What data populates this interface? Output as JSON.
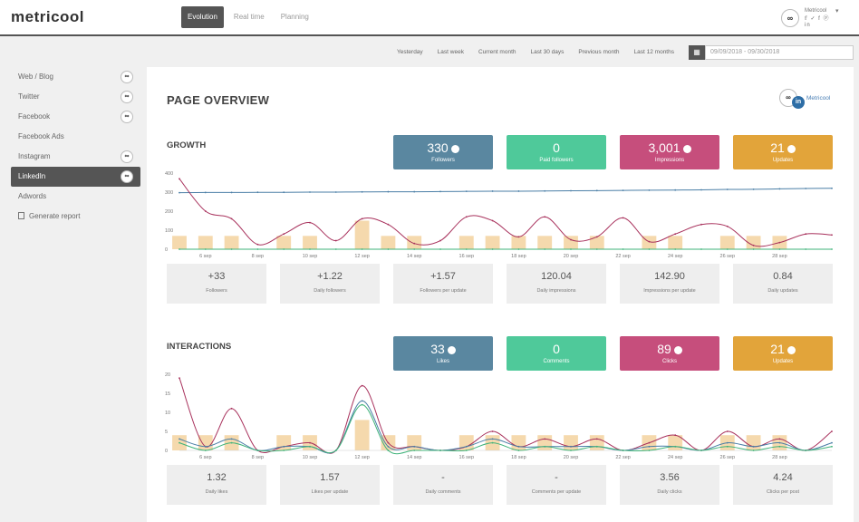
{
  "app": {
    "logo": "metricool"
  },
  "nav": {
    "tabs": [
      {
        "label": "Evolution"
      },
      {
        "label": "Real time"
      },
      {
        "label": "Planning"
      }
    ]
  },
  "account": {
    "name": "Metricool",
    "avatar": "∞",
    "social_icons": "𝕗 ✓ f ⓟ in"
  },
  "range": {
    "items": [
      {
        "label": "Yesterday"
      },
      {
        "label": "Last week"
      },
      {
        "label": "Current month"
      },
      {
        "label": "Last 30 days"
      },
      {
        "label": "Previous month"
      },
      {
        "label": "Last 12 months"
      }
    ],
    "date_value": "09/09/2018 - 09/30/2018"
  },
  "sidebar": {
    "items": [
      {
        "label": "Web / Blog"
      },
      {
        "label": "Twitter"
      },
      {
        "label": "Facebook"
      },
      {
        "label": "Facebook Ads"
      },
      {
        "label": "Instagram"
      },
      {
        "label": "LinkedIn"
      },
      {
        "label": "Adwords"
      },
      {
        "label": "Generate report"
      }
    ]
  },
  "page": {
    "title": "PAGE OVERVIEW",
    "brand_name": "Metricool",
    "brand_in": "in",
    "brand_mark": "∞"
  },
  "growth": {
    "title": "GROWTH",
    "kpis": [
      {
        "value": "330",
        "label": "Followers",
        "color": "#5a87a0"
      },
      {
        "value": "0",
        "label": "Paid followers",
        "color": "#4fc99a"
      },
      {
        "value": "3,001",
        "label": "Impressions",
        "color": "#c64e7c"
      },
      {
        "value": "21",
        "label": "Updates",
        "color": "#e2a43a"
      }
    ],
    "stats": [
      {
        "value": "+33",
        "label": "Followers"
      },
      {
        "value": "+1.22",
        "label": "Daily followers"
      },
      {
        "value": "+1.57",
        "label": "Followers per update"
      },
      {
        "value": "120.04",
        "label": "Daily impressions"
      },
      {
        "value": "142.90",
        "label": "Impressions per update"
      },
      {
        "value": "0.84",
        "label": "Daily updates"
      }
    ]
  },
  "interactions": {
    "title": "INTERACTIONS",
    "kpis": [
      {
        "value": "33",
        "label": "Likes",
        "color": "#5a87a0"
      },
      {
        "value": "0",
        "label": "Comments",
        "color": "#4fc99a"
      },
      {
        "value": "89",
        "label": "Clicks",
        "color": "#c64e7c"
      },
      {
        "value": "21",
        "label": "Updates",
        "color": "#e2a43a"
      }
    ],
    "stats": [
      {
        "value": "1.32",
        "label": "Daily likes"
      },
      {
        "value": "1.57",
        "label": "Likes per update"
      },
      {
        "value": "-",
        "label": "Daily comments"
      },
      {
        "value": "-",
        "label": "Comments per update"
      },
      {
        "value": "3.56",
        "label": "Daily clicks"
      },
      {
        "value": "4.24",
        "label": "Clicks per post"
      }
    ]
  },
  "chart_data": [
    {
      "type": "line",
      "x_ticks": [
        "6 sep",
        "8 sep",
        "10 sep",
        "12 sep",
        "14 sep",
        "16 sep",
        "18 sep",
        "20 sep",
        "22 sep",
        "24 sep",
        "26 sep",
        "28 sep"
      ],
      "ylim": [
        0,
        400
      ],
      "y_ticks": [
        "0",
        "100",
        "200",
        "300",
        "400"
      ],
      "x": [
        0,
        1,
        2,
        3,
        4,
        5,
        6,
        7,
        8,
        9,
        10,
        11,
        12,
        13,
        14,
        15,
        16,
        17,
        18,
        19,
        20,
        21,
        22,
        23,
        24,
        25
      ],
      "bars": [
        70,
        70,
        70,
        0,
        70,
        70,
        0,
        150,
        70,
        70,
        0,
        70,
        70,
        70,
        70,
        70,
        70,
        0,
        70,
        70,
        0,
        70,
        70,
        70,
        0,
        0
      ],
      "series": [
        {
          "values": [
            297,
            298,
            298,
            299,
            299,
            300,
            300,
            301,
            302,
            302,
            303,
            304,
            305,
            305,
            306,
            307,
            308,
            309,
            310,
            311,
            312,
            314,
            315,
            317,
            319,
            320
          ],
          "color": "#4a7ea6"
        },
        {
          "values": [
            370,
            200,
            160,
            25,
            80,
            140,
            45,
            160,
            130,
            30,
            45,
            170,
            150,
            65,
            170,
            50,
            65,
            165,
            40,
            80,
            130,
            120,
            20,
            35,
            80,
            75
          ],
          "color": "#a8315c"
        },
        {
          "values": [
            0,
            0,
            0,
            0,
            0,
            0,
            0,
            0,
            0,
            0,
            0,
            0,
            0,
            0,
            0,
            0,
            0,
            0,
            0,
            0,
            0,
            0,
            0,
            0,
            0,
            0
          ],
          "color": "#3fb37a"
        }
      ]
    },
    {
      "type": "line",
      "x_ticks": [
        "6 sep",
        "8 sep",
        "10 sep",
        "12 sep",
        "14 sep",
        "16 sep",
        "18 sep",
        "20 sep",
        "22 sep",
        "24 sep",
        "26 sep",
        "28 sep"
      ],
      "ylim": [
        0,
        20
      ],
      "y_ticks": [
        "0",
        "5",
        "10",
        "15",
        "20"
      ],
      "x": [
        0,
        1,
        2,
        3,
        4,
        5,
        6,
        7,
        8,
        9,
        10,
        11,
        12,
        13,
        14,
        15,
        16,
        17,
        18,
        19,
        20,
        21,
        22,
        23,
        24,
        25
      ],
      "bars": [
        4,
        4,
        4,
        0,
        4,
        4,
        0,
        8,
        4,
        4,
        0,
        4,
        4,
        4,
        4,
        4,
        4,
        0,
        4,
        4,
        0,
        4,
        4,
        4,
        0,
        0
      ],
      "series": [
        {
          "values": [
            19,
            1,
            11,
            0,
            1,
            2,
            0,
            17,
            2,
            1,
            0,
            1,
            5,
            1,
            3,
            1,
            3,
            0,
            2,
            4,
            0,
            5,
            1,
            3,
            0,
            5
          ],
          "color": "#a8315c"
        },
        {
          "values": [
            3,
            1,
            3,
            0,
            1,
            1,
            0,
            13,
            1,
            1,
            0,
            1,
            3,
            1,
            1,
            1,
            1,
            0,
            1,
            1,
            0,
            2,
            1,
            2,
            0,
            2
          ],
          "color": "#4a7ea6"
        },
        {
          "values": [
            2,
            0,
            2,
            0,
            0,
            1,
            0,
            12,
            0,
            0,
            0,
            0,
            2,
            0,
            1,
            0,
            1,
            0,
            0,
            1,
            0,
            1,
            0,
            1,
            0,
            1
          ],
          "color": "#3fb37a"
        }
      ]
    }
  ]
}
